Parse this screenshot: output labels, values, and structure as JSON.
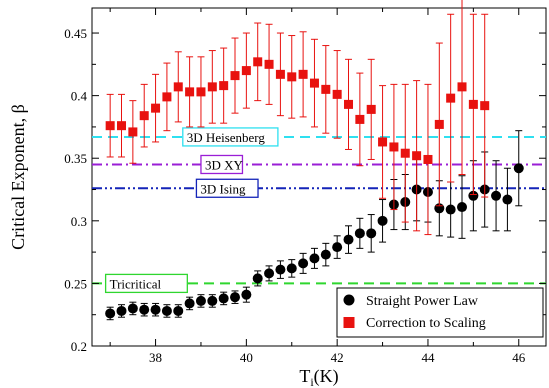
{
  "chart_data": {
    "type": "scatter",
    "xlabel": "T",
    "xlabel_sub": "i",
    "xlabel_unit": "(K)",
    "ylabel": "Critical Exponent, β",
    "xlim": [
      36.6,
      46.6
    ],
    "ylim": [
      0.2,
      0.47
    ],
    "x_ticks": [
      38,
      40,
      42,
      44,
      46
    ],
    "y_ticks": [
      0.2,
      0.25,
      0.3,
      0.35,
      0.4,
      0.45
    ],
    "x_tick_labels": [
      "38",
      "40",
      "42",
      "44",
      "46"
    ],
    "y_tick_labels": [
      "0.2",
      "0.25",
      "0.3",
      "0.35",
      "0.4",
      "0.45"
    ],
    "grid": false,
    "legend_position": "bottom-right",
    "series": [
      {
        "name": "Straight Power Law",
        "marker": "circle",
        "color": "#000000",
        "x": [
          37.0,
          37.25,
          37.5,
          37.75,
          38.0,
          38.25,
          38.5,
          38.75,
          39.0,
          39.25,
          39.5,
          39.75,
          40.0,
          40.25,
          40.5,
          40.75,
          41.0,
          41.25,
          41.5,
          41.75,
          42.0,
          42.25,
          42.5,
          42.75,
          43.0,
          43.25,
          43.5,
          43.75,
          44.0,
          44.25,
          44.5,
          44.75,
          45.0,
          45.25,
          45.5,
          45.75,
          46.0
        ],
        "y": [
          0.226,
          0.228,
          0.23,
          0.229,
          0.229,
          0.228,
          0.228,
          0.234,
          0.236,
          0.236,
          0.238,
          0.239,
          0.241,
          0.254,
          0.258,
          0.261,
          0.262,
          0.266,
          0.27,
          0.273,
          0.279,
          0.285,
          0.29,
          0.29,
          0.3,
          0.313,
          0.315,
          0.325,
          0.323,
          0.31,
          0.309,
          0.311,
          0.32,
          0.325,
          0.32,
          0.317,
          0.342
        ],
        "err": [
          0.005,
          0.005,
          0.005,
          0.005,
          0.005,
          0.005,
          0.005,
          0.005,
          0.005,
          0.005,
          0.005,
          0.005,
          0.006,
          0.006,
          0.006,
          0.007,
          0.007,
          0.008,
          0.008,
          0.009,
          0.009,
          0.011,
          0.012,
          0.015,
          0.017,
          0.02,
          0.022,
          0.025,
          0.024,
          0.022,
          0.022,
          0.025,
          0.028,
          0.03,
          0.028,
          0.025,
          0.03
        ]
      },
      {
        "name": "Correction to Scaling",
        "marker": "square",
        "color": "#e8120f",
        "x": [
          37.0,
          37.25,
          37.5,
          37.75,
          38.0,
          38.25,
          38.5,
          38.75,
          39.0,
          39.25,
          39.5,
          39.75,
          40.0,
          40.25,
          40.5,
          40.75,
          41.0,
          41.25,
          41.5,
          41.75,
          42.0,
          42.25,
          42.5,
          42.75,
          43.0,
          43.25,
          43.5,
          43.75,
          44.0,
          44.25,
          44.5,
          44.75,
          45.0,
          45.25
        ],
        "y": [
          0.376,
          0.376,
          0.371,
          0.384,
          0.39,
          0.399,
          0.407,
          0.403,
          0.403,
          0.407,
          0.408,
          0.416,
          0.42,
          0.427,
          0.425,
          0.417,
          0.415,
          0.417,
          0.41,
          0.405,
          0.401,
          0.393,
          0.381,
          0.389,
          0.363,
          0.359,
          0.354,
          0.352,
          0.349,
          0.377,
          0.398,
          0.407,
          0.393,
          0.392
        ],
        "err": [
          0.025,
          0.025,
          0.025,
          0.025,
          0.027,
          0.027,
          0.028,
          0.028,
          0.028,
          0.029,
          0.03,
          0.03,
          0.03,
          0.031,
          0.032,
          0.033,
          0.033,
          0.034,
          0.035,
          0.035,
          0.035,
          0.036,
          0.037,
          0.04,
          0.045,
          0.05,
          0.055,
          0.06,
          0.06,
          0.065,
          0.067,
          0.07,
          0.072,
          0.073
        ]
      }
    ],
    "reference_lines": [
      {
        "label": "3D Heisenberg",
        "y": 0.367,
        "color": "#2ee0f0",
        "style": "dashed",
        "label_x": 38.6
      },
      {
        "label": "3D XY",
        "y": 0.345,
        "color": "#9a1ed6",
        "style": "dashdot",
        "label_x": 39.0
      },
      {
        "label": "3D Ising",
        "y": 0.326,
        "color": "#1424b8",
        "style": "dashdotdot",
        "label_x": 38.9
      },
      {
        "label": "Tricritical",
        "y": 0.25,
        "color": "#2fd62f",
        "style": "dashed",
        "label_x": 36.9
      }
    ]
  }
}
